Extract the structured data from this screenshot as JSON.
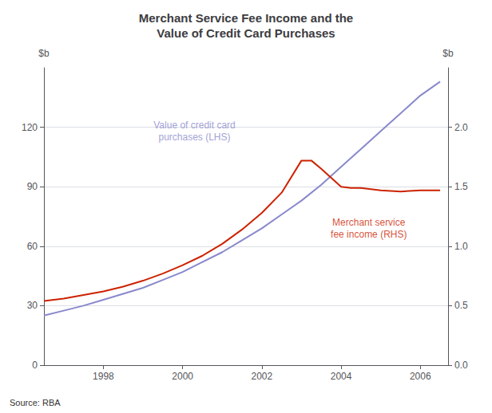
{
  "chart_data": {
    "type": "line",
    "title": "Merchant Service Fee Income and the\nValue of Credit Card Purchases",
    "source": "Source: RBA",
    "ylabel": "$b",
    "y2label": "$b",
    "xlim": [
      1996.5,
      2006.7
    ],
    "xticks": [
      1998,
      2000,
      2002,
      2004,
      2006
    ],
    "ylim": [
      0,
      150
    ],
    "yticks": [
      0,
      30,
      60,
      90,
      120
    ],
    "y2lim": [
      0,
      2.5
    ],
    "y2ticks": [
      {
        "value": 0,
        "label": "0.0"
      },
      0.5,
      {
        "value": 1,
        "label": "1.0"
      },
      1.5,
      {
        "value": 2,
        "label": "2.0"
      }
    ],
    "grid": true,
    "series": [
      {
        "color": "#8888cc",
        "axis": "y",
        "x": [
          1996.5,
          1997,
          1997.5,
          1998,
          1998.5,
          1999,
          1999.5,
          2000,
          2000.5,
          2001,
          2001.5,
          2002,
          2002.5,
          2003,
          2003.5,
          2004,
          2004.5,
          2005,
          2005.5,
          2006,
          2006.5
        ],
        "values": [
          25,
          27.5,
          30,
          33,
          36,
          39,
          43,
          47,
          52,
          57,
          63,
          69,
          76,
          83,
          91,
          100,
          109,
          118,
          127,
          136,
          143
        ]
      },
      {
        "color": "#cc2200",
        "axis": "y2",
        "x": [
          1996.5,
          1997,
          1997.5,
          1998,
          1998.5,
          1999,
          1999.5,
          2000,
          2000.5,
          2001,
          2001.5,
          2002,
          2002.5,
          2003,
          2003.25,
          2003.5,
          2004,
          2004.25,
          2004.5,
          2005,
          2005.5,
          2006,
          2006.5
        ],
        "values": [
          0.54,
          0.56,
          0.59,
          0.62,
          0.66,
          0.71,
          0.77,
          0.84,
          0.92,
          1.02,
          1.14,
          1.28,
          1.45,
          1.72,
          1.72,
          1.65,
          1.5,
          1.49,
          1.49,
          1.47,
          1.46,
          1.47,
          1.47
        ]
      }
    ],
    "annotations": [
      {
        "text": "Value of credit card\npurchases (LHS)",
        "x": 2000.3,
        "y": 118,
        "color": "#8888cc",
        "axis": "y"
      },
      {
        "text": "Merchant service\nfee income (RHS)",
        "x": 2004.7,
        "y": 1.15,
        "color": "#cc2200",
        "axis": "y2"
      }
    ]
  }
}
